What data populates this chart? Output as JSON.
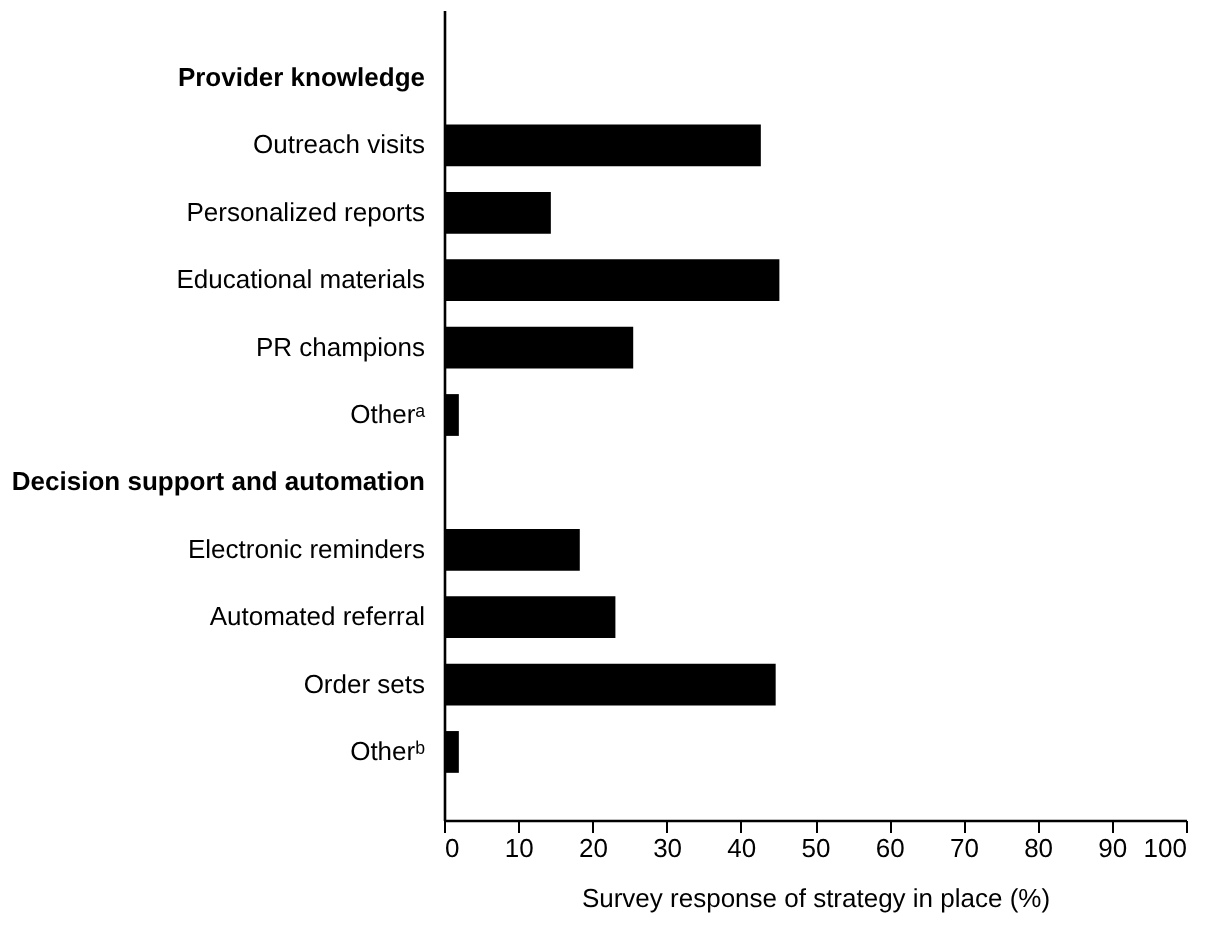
{
  "chart_data": {
    "type": "bar",
    "orientation": "horizontal",
    "xlabel": "Survey response of strategy in place (%)",
    "categories": [
      "Provider knowledge",
      "Outreach visits",
      "Personalized reports",
      "Educational materials",
      "PR champions",
      "Otherᵃ",
      "Decision support and automation",
      "Electronic reminders",
      "Automated referral",
      "Order sets",
      "Otherᵇ"
    ],
    "values": [
      null,
      42.7,
      14.4,
      45.2,
      25.5,
      2.0,
      null,
      18.3,
      23.1,
      44.7,
      2.0
    ],
    "color": "#000000",
    "xlim": [
      0,
      100
    ],
    "xticks": [
      0,
      10,
      20,
      30,
      40,
      50,
      60,
      70,
      80,
      90,
      100
    ],
    "grid": false
  }
}
